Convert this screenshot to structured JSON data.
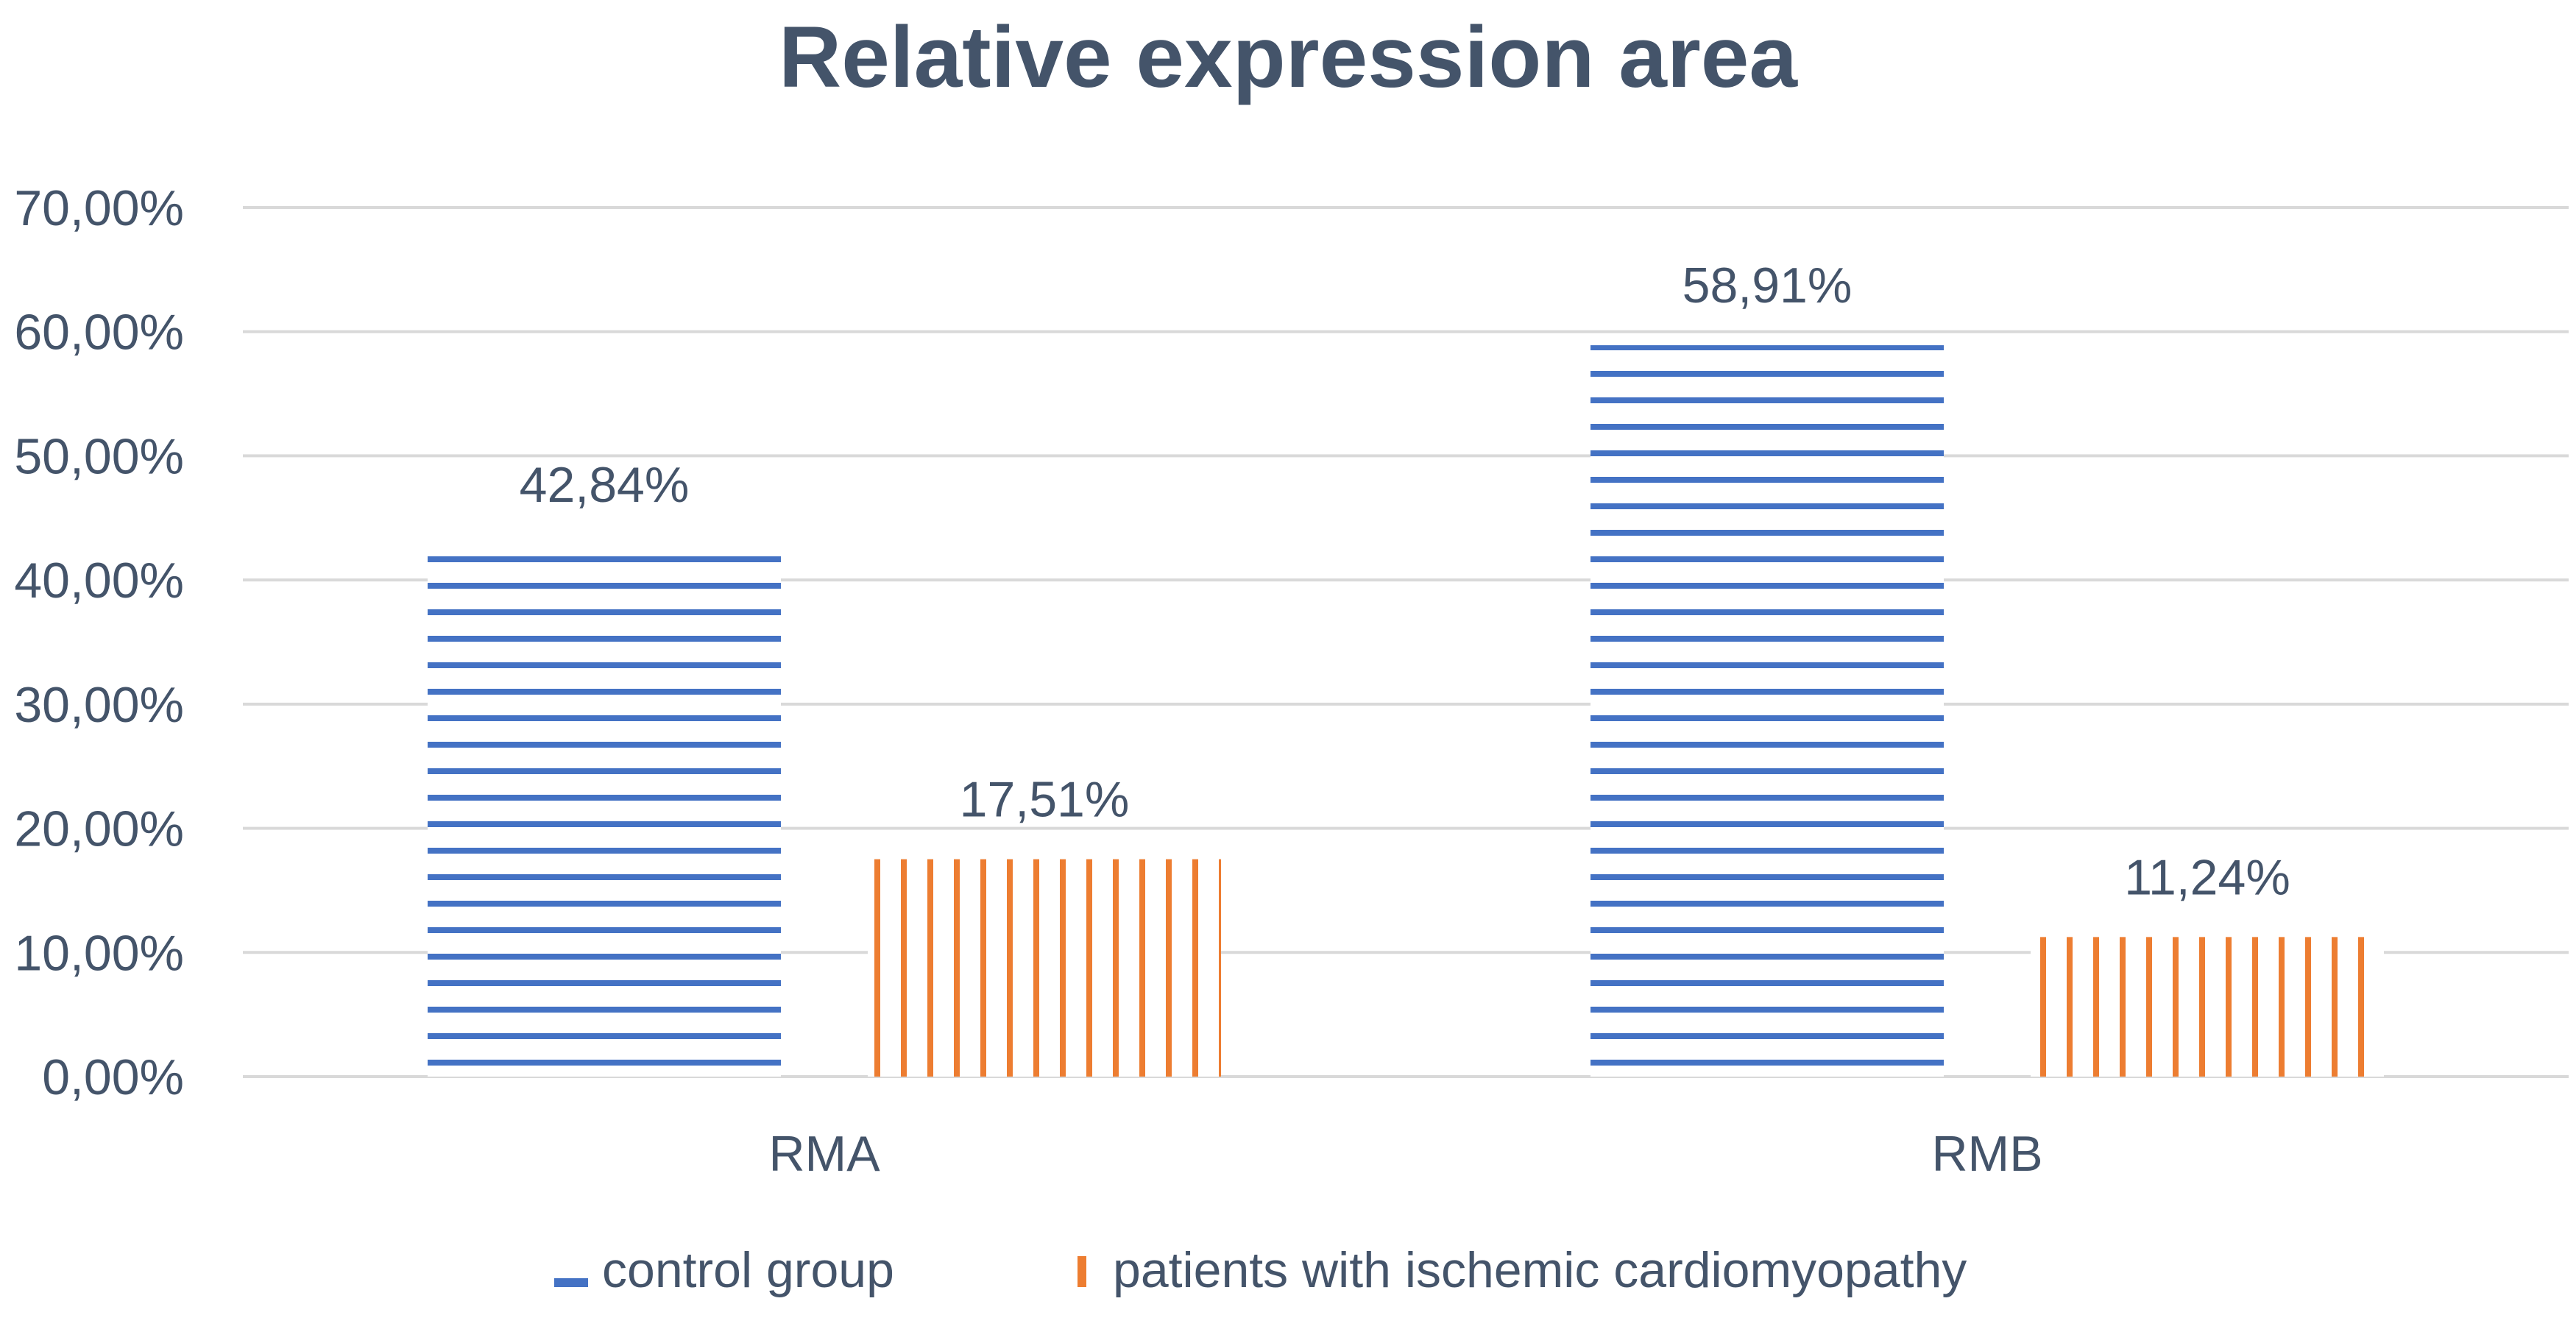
{
  "chart_data": {
    "type": "bar",
    "title": "Relative expression area",
    "xlabel": "",
    "ylabel": "",
    "categories": [
      "RMA",
      "RMB"
    ],
    "series": [
      {
        "name": "control group",
        "values": [
          42.84,
          58.91
        ],
        "labels": [
          "42,84%",
          "58,91%"
        ],
        "color": "#4472C4",
        "pattern": "horizontal-stripes"
      },
      {
        "name": "patients with ischemic cardiomyopathy",
        "values": [
          17.51,
          11.24
        ],
        "labels": [
          "17,51%",
          "11,24%"
        ],
        "color": "#ED7D31",
        "pattern": "vertical-stripes"
      }
    ],
    "ylim": [
      0,
      70
    ],
    "yticks": [
      0,
      10,
      20,
      30,
      40,
      50,
      60,
      70
    ],
    "ytick_labels": [
      "0,00%",
      "10,00%",
      "20,00%",
      "30,00%",
      "40,00%",
      "50,00%",
      "60,00%",
      "70,00%"
    ],
    "grid": true,
    "legend_position": "bottom",
    "colors": {
      "text": "#44546A",
      "grid": "#D9D9D9"
    }
  }
}
